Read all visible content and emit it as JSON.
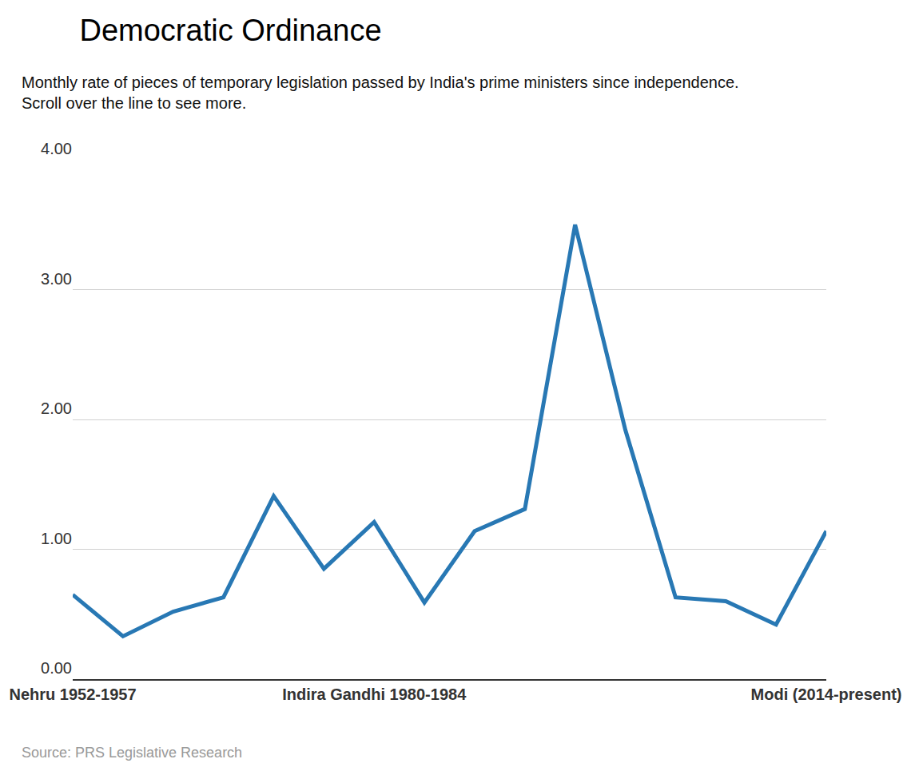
{
  "chart_data": {
    "type": "line",
    "title": "Democratic Ordinance",
    "subtitle": "Monthly rate of pieces of temporary legislation passed by India's prime ministers since independence.\nScroll over the line to see more.",
    "source": "Source: PRS Legislative Research",
    "categories": [
      "Nehru 1952-1957",
      null,
      null,
      null,
      null,
      null,
      "Indira Gandhi 1980-1984",
      null,
      null,
      null,
      null,
      null,
      null,
      null,
      null,
      "Modi (2014-present)"
    ],
    "values": [
      0.65,
      0.33,
      0.52,
      0.63,
      1.41,
      0.85,
      1.21,
      0.59,
      1.14,
      1.31,
      3.5,
      1.92,
      0.63,
      0.6,
      0.42,
      1.14
    ],
    "color": "#2878b4",
    "ylim": [
      0,
      4
    ],
    "yticks": [
      {
        "value": 0,
        "label": "0.00"
      },
      {
        "value": 1,
        "label": "1.00"
      },
      {
        "value": 2,
        "label": "2.00"
      },
      {
        "value": 3,
        "label": "3.00"
      },
      {
        "value": 4,
        "label": "4.00"
      }
    ],
    "grid": true
  }
}
